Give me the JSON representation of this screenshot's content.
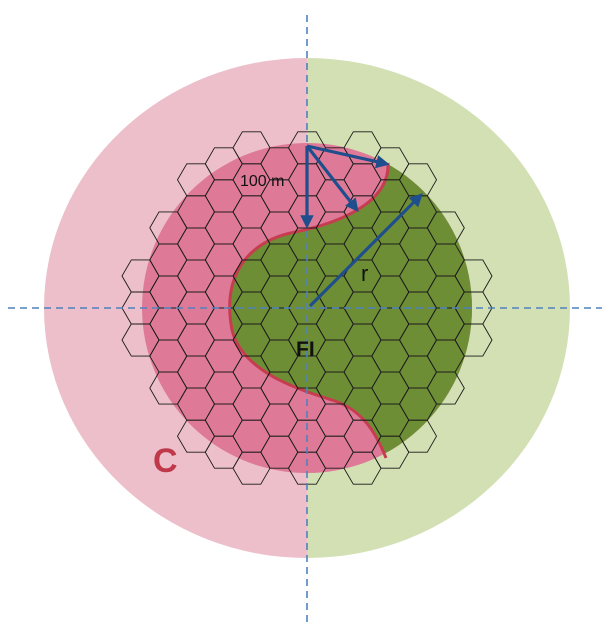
{
  "labels": {
    "distance": "100 m",
    "radius": "r",
    "field_interior": "FI",
    "control": "C"
  },
  "colors": {
    "control_outer": "#ecbfcb",
    "treatment_outer": "#d2e0b3",
    "control_inner": "#de7a98",
    "treatment_inner": "#6e8e36",
    "boundary": "#c63d4f",
    "arrows": "#1f4e8c",
    "axis_lines": "#4f81bd",
    "label_c": "#c0394b"
  }
}
